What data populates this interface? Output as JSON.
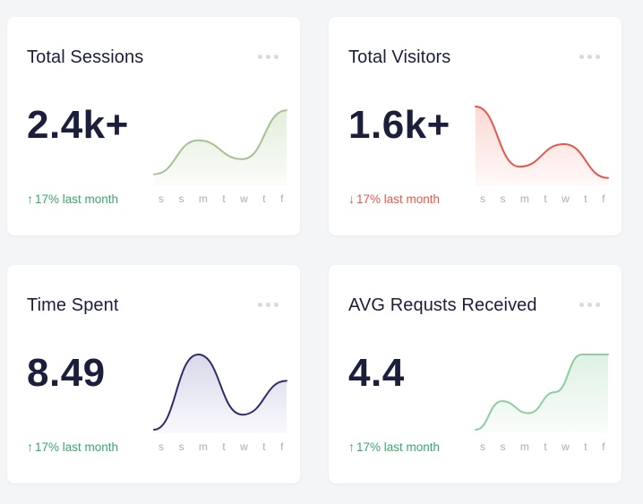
{
  "cards": [
    {
      "title": "Total Sessions",
      "value": "2.4k+",
      "trend": {
        "direction": "up",
        "arrow": "↑",
        "text": "17% last month"
      },
      "color": "#a3c293",
      "fill": "#e3eedc",
      "sparkline": [
        0.1,
        0.55,
        0.3,
        0.95
      ],
      "days": [
        "s",
        "s",
        "m",
        "t",
        "w",
        "t",
        "f"
      ]
    },
    {
      "title": "Total Visitors",
      "value": "1.6k+",
      "trend": {
        "direction": "down",
        "arrow": "↓",
        "text": "17% last month"
      },
      "color": "#e5574a",
      "fill": "#fbd9d4",
      "sparkline": [
        1.0,
        0.2,
        0.5,
        0.05
      ],
      "days": [
        "s",
        "s",
        "m",
        "t",
        "w",
        "t",
        "f"
      ]
    },
    {
      "title": "Time Spent",
      "value": "8.49",
      "trend": {
        "direction": "up",
        "arrow": "↑",
        "text": "17% last month"
      },
      "color": "#2e2d6b",
      "fill": "#d8d8ea",
      "sparkline": [
        0.0,
        1.0,
        0.2,
        0.65
      ],
      "days": [
        "s",
        "s",
        "m",
        "t",
        "w",
        "t",
        "f"
      ]
    },
    {
      "title": "AVG Requsts Received",
      "value": "4.4",
      "trend": {
        "direction": "up",
        "arrow": "↑",
        "text": "17% last month"
      },
      "color": "#8fcca0",
      "fill": "#dff1e4",
      "sparkline": [
        0.0,
        0.38,
        0.22,
        0.5,
        1.0,
        1.0
      ],
      "days": [
        "s",
        "s",
        "m",
        "t",
        "w",
        "t",
        "f"
      ]
    }
  ]
}
